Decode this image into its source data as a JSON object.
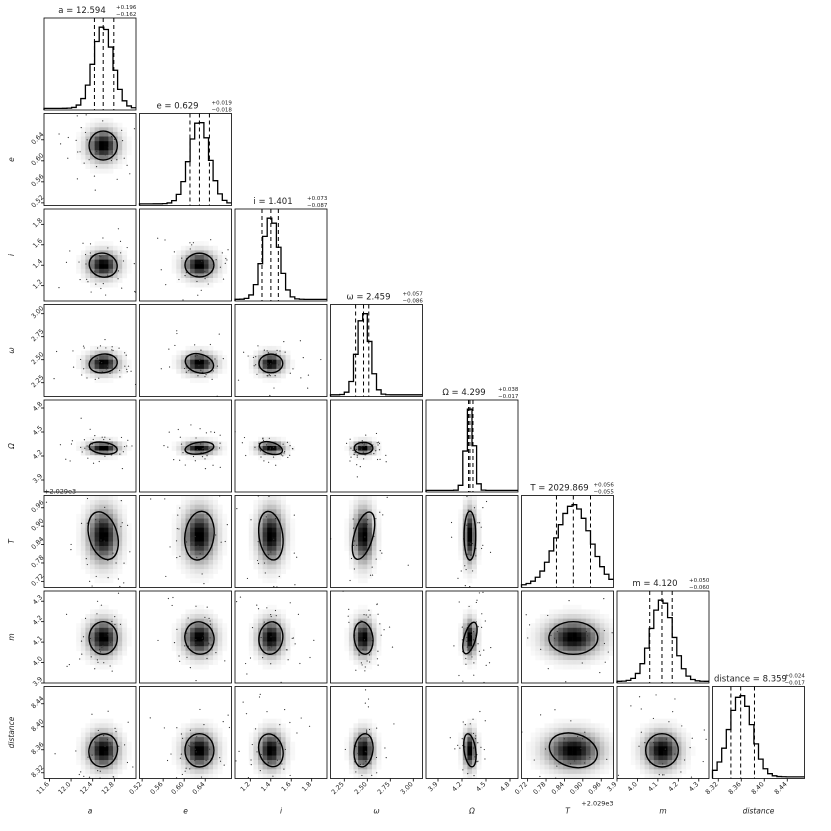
{
  "chart_data": {
    "type": "corner",
    "parameters": [
      {
        "name": "a",
        "label": "a",
        "median": 12.594,
        "err_plus": 0.196,
        "err_minus": 0.162,
        "title": "a = 12.594",
        "sup": "+0.196",
        "sub": "−0.162",
        "lim": [
          11.5,
          13.2
        ],
        "ticks": [
          11.6,
          12.0,
          12.4,
          12.8
        ],
        "tick_labels": [
          "11.6",
          "12.0",
          "12.4",
          "12.8"
        ],
        "sd": 0.18
      },
      {
        "name": "e",
        "label": "e",
        "median": 0.629,
        "err_plus": 0.019,
        "err_minus": 0.018,
        "title": "e = 0.629",
        "sup": "+0.019",
        "sub": "−0.018",
        "lim": [
          0.515,
          0.69
        ],
        "ticks": [
          0.52,
          0.56,
          0.6,
          0.64
        ],
        "tick_labels": [
          "0.52",
          "0.56",
          "0.60",
          "0.64"
        ],
        "sd": 0.019
      },
      {
        "name": "i",
        "label": "i",
        "median": 1.401,
        "err_plus": 0.073,
        "err_minus": 0.087,
        "title": "i = 1.401",
        "sup": "+0.073",
        "sub": "−0.087",
        "lim": [
          1.05,
          1.95
        ],
        "ticks": [
          1.2,
          1.4,
          1.6,
          1.8
        ],
        "tick_labels": [
          "1.2",
          "1.4",
          "1.6",
          "1.8"
        ],
        "sd": 0.08
      },
      {
        "name": "omega",
        "label": "ω",
        "median": 2.459,
        "err_plus": 0.057,
        "err_minus": 0.086,
        "title": "ω = 2.459",
        "sup": "+0.057",
        "sub": "−0.086",
        "lim": [
          2.1,
          3.1
        ],
        "ticks": [
          2.25,
          2.5,
          2.75,
          3.0
        ],
        "tick_labels": [
          "2.25",
          "2.50",
          "2.75",
          "3.00"
        ],
        "sd": 0.07
      },
      {
        "name": "Omega",
        "label": "Ω",
        "median": 4.299,
        "err_plus": 0.038,
        "err_minus": 0.017,
        "title": "Ω = 4.299",
        "sup": "+0.038",
        "sub": "−0.017",
        "lim": [
          3.75,
          4.9
        ],
        "ticks": [
          3.9,
          4.2,
          4.5,
          4.8
        ],
        "tick_labels": [
          "3.9",
          "4.2",
          "4.5",
          "4.8"
        ],
        "sd": 0.05
      },
      {
        "name": "T",
        "label": "T",
        "median": 2029.869,
        "err_plus": 0.056,
        "err_minus": 0.055,
        "title": "T = 2029.869",
        "sup": "+0.056",
        "sub": "−0.055",
        "lim": [
          2029.7,
          2030.0
        ],
        "ticks": [
          2029.72,
          2029.78,
          2029.84,
          2029.9,
          2029.96
        ],
        "tick_labels": [
          "0.72",
          "0.78",
          "0.84",
          "0.90",
          "0.96"
        ],
        "offset": "+2.029e3",
        "sd": 0.055
      },
      {
        "name": "m",
        "label": "m",
        "median": 4.12,
        "err_plus": 0.05,
        "err_minus": 0.06,
        "title": "m = 4.120",
        "sup": "+0.050",
        "sub": "−0.060",
        "lim": [
          3.9,
          4.35
        ],
        "ticks": [
          3.9,
          4.0,
          4.1,
          4.2,
          4.3
        ],
        "tick_labels": [
          "3.9",
          "4.0",
          "4.1",
          "4.2",
          "4.3"
        ],
        "sd": 0.055
      },
      {
        "name": "distance",
        "label": "distance",
        "median": 8.359,
        "err_plus": 0.024,
        "err_minus": 0.017,
        "title": "distance = 8.359",
        "sup": "+0.024",
        "sub": "−0.017",
        "lim": [
          8.31,
          8.47
        ],
        "ticks": [
          8.32,
          8.36,
          8.4,
          8.44
        ],
        "tick_labels": [
          "8.32",
          "8.36",
          "8.40",
          "8.44"
        ],
        "sd": 0.02
      }
    ],
    "quantiles": [
      0.16,
      0.5,
      0.84
    ],
    "histogram_bins": 20,
    "contour_level": "1-sigma"
  }
}
